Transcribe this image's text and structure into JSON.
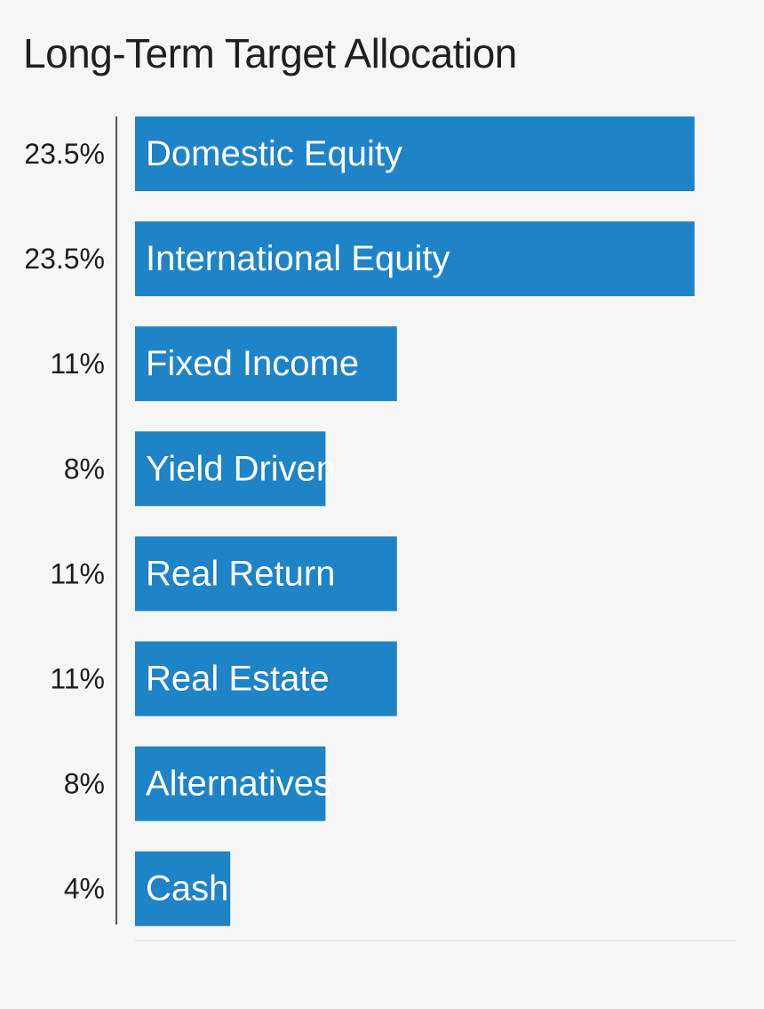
{
  "chart_data": {
    "type": "bar",
    "orientation": "horizontal",
    "title": "Long-Term Target Allocation",
    "categories": [
      "Domestic Equity",
      "International Equity",
      "Fixed Income",
      "Yield Driven",
      "Real Return",
      "Real Estate",
      "Alternatives",
      "Cash"
    ],
    "values": [
      23.5,
      23.5,
      11,
      8,
      11,
      11,
      8,
      4
    ],
    "value_labels": [
      "23.5%",
      "23.5%",
      "11%",
      "8%",
      "11%",
      "11%",
      "8%",
      "4%"
    ],
    "xlim": [
      0,
      25
    ],
    "grid": false,
    "legend": "none",
    "colors": {
      "bar": "#1e83c7",
      "bar_text": "#ffffff",
      "value_text": "#1c1c1c",
      "axis": "#555555",
      "baseline": "#e2e2e2",
      "background": "#f6f6f6"
    }
  }
}
